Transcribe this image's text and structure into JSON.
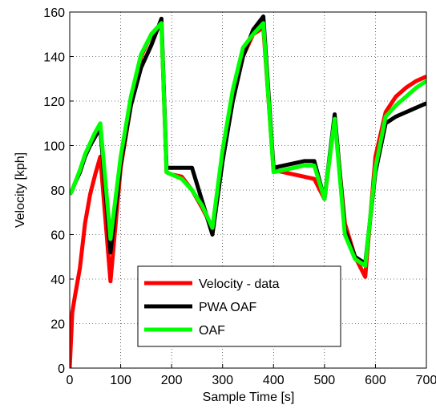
{
  "chart_data": {
    "type": "line",
    "x_label": "Sample Time [s]",
    "y_label": "Velocity [kph]",
    "x": [
      0,
      5,
      10,
      20,
      30,
      40,
      50,
      60,
      80,
      100,
      120,
      140,
      160,
      180,
      190,
      200,
      220,
      240,
      260,
      280,
      300,
      320,
      340,
      360,
      380,
      400,
      420,
      440,
      460,
      480,
      500,
      520,
      540,
      560,
      580,
      600,
      620,
      640,
      660,
      680,
      700
    ],
    "series": [
      {
        "name": "Velocity - data",
        "color": "#ff0000",
        "values": [
          0,
          25,
          32,
          45,
          65,
          78,
          87,
          95,
          39,
          90,
          118,
          140,
          150,
          155,
          88,
          87,
          86,
          80,
          72,
          63,
          95,
          120,
          140,
          150,
          153,
          89,
          88,
          87,
          86,
          85,
          76,
          112,
          65,
          50,
          41,
          95,
          115,
          122,
          126,
          129,
          131
        ]
      },
      {
        "name": "PWA OAF",
        "color": "#000000",
        "values": [
          78,
          80,
          83,
          88,
          95,
          100,
          104,
          108,
          52,
          92,
          118,
          135,
          145,
          157,
          90,
          90,
          90,
          90,
          75,
          60,
          93,
          120,
          140,
          152,
          158,
          90,
          91,
          92,
          93,
          93,
          76,
          114,
          62,
          50,
          47,
          88,
          110,
          113,
          115,
          117,
          119
        ]
      },
      {
        "name": "OAF",
        "color": "#00ff00",
        "values": [
          78,
          80,
          83,
          89,
          96,
          101,
          106,
          110,
          58,
          95,
          122,
          141,
          150,
          155,
          88,
          87,
          85,
          80,
          73,
          63,
          98,
          125,
          144,
          150,
          155,
          88,
          89,
          90,
          91,
          91,
          76,
          112,
          60,
          49,
          46,
          90,
          113,
          118,
          122,
          126,
          129
        ]
      }
    ],
    "xlim": [
      0,
      700
    ],
    "ylim": [
      0,
      160
    ],
    "xticks": [
      0,
      100,
      200,
      300,
      400,
      500,
      600,
      700
    ],
    "yticks": [
      0,
      20,
      40,
      60,
      80,
      100,
      120,
      140,
      160
    ],
    "grid": true,
    "legend": "lower center"
  }
}
